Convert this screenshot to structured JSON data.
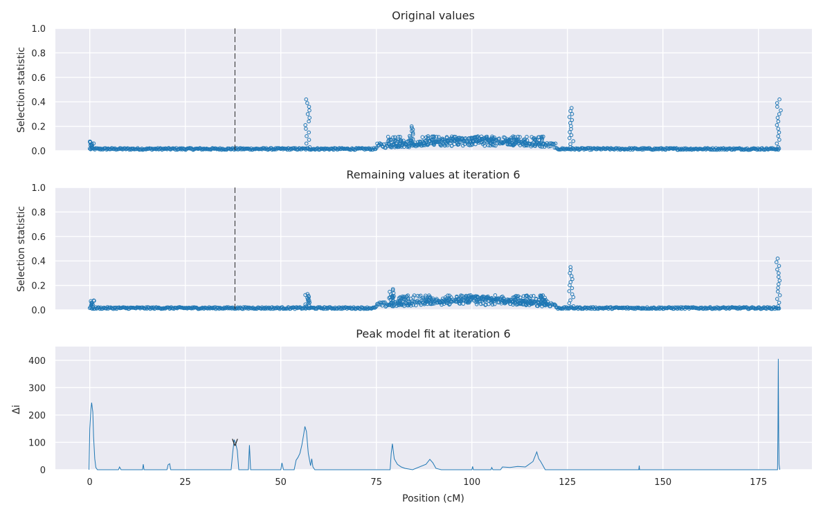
{
  "chart_data": [
    {
      "type": "scatter",
      "title": "Original values",
      "ylabel": "Selection statistic",
      "xlabel": "",
      "xlim": [
        -9,
        189
      ],
      "ylim": [
        0,
        1
      ],
      "yticks": [
        "0.0",
        "0.2",
        "0.4",
        "0.6",
        "0.8",
        "1.0"
      ],
      "xticks": [],
      "grid": true,
      "marker": "open-circle",
      "color": "#1f77b4",
      "vline_x": 38,
      "x_range": [
        0,
        180.5
      ],
      "peaks": [
        {
          "x": 57,
          "y": 0.42
        },
        {
          "x": 84,
          "y": 0.2
        },
        {
          "x": 126,
          "y": 0.35
        },
        {
          "x": 180.3,
          "y": 0.42
        }
      ]
    },
    {
      "type": "scatter",
      "title": "Remaining values at iteration 6",
      "ylabel": "Selection statistic",
      "xlabel": "",
      "xlim": [
        -9,
        189
      ],
      "ylim": [
        0,
        1
      ],
      "yticks": [
        "0.0",
        "0.2",
        "0.4",
        "0.6",
        "0.8",
        "1.0"
      ],
      "xticks": [],
      "grid": true,
      "marker": "open-circle",
      "color": "#1f77b4",
      "vline_x": 38,
      "x_range": [
        0,
        180.5
      ],
      "peaks": [
        {
          "x": 57,
          "y": 0.13
        },
        {
          "x": 79,
          "y": 0.17
        },
        {
          "x": 126,
          "y": 0.35
        },
        {
          "x": 180.3,
          "y": 0.42
        }
      ]
    },
    {
      "type": "line",
      "title": "Peak model fit at iteration 6",
      "ylabel": "Δi",
      "xlabel": "Position (cM)",
      "xlim": [
        -9,
        189
      ],
      "ylim": [
        0,
        450
      ],
      "yticks": [
        "0",
        "100",
        "200",
        "300",
        "400"
      ],
      "xticks": [
        "0",
        "25",
        "50",
        "75",
        "100",
        "125",
        "150",
        "175"
      ],
      "grid": true,
      "color": "#1f77b4",
      "marker_label": {
        "x": 38,
        "y": 100,
        "text": "V"
      },
      "x": [
        -0.2,
        0,
        0.3,
        0.5,
        0.8,
        1.0,
        1.3,
        1.6,
        2.0,
        7.5,
        7.8,
        8.2,
        13.8,
        14.0,
        14.2,
        20.2,
        20.5,
        20.9,
        21.2,
        37.0,
        37.4,
        37.8,
        38.2,
        38.6,
        39.0,
        41.5,
        41.8,
        42.1,
        50.0,
        50.3,
        50.7,
        53.5,
        54.0,
        54.5,
        55.0,
        55.5,
        56.0,
        56.3,
        56.7,
        57.2,
        57.8,
        58.1,
        58.4,
        58.9,
        78.6,
        78.9,
        79.2,
        79.7,
        80.5,
        81.5,
        82.5,
        84.5,
        88.0,
        89.0,
        89.8,
        90.6,
        92.0,
        100.0,
        100.2,
        100.4,
        105.0,
        105.2,
        105.5,
        107.5,
        108.0,
        110.0,
        112.0,
        114.0,
        116.0,
        117.0,
        117.5,
        118.0,
        118.8,
        119.2,
        143.7,
        143.8,
        143.9,
        180.0,
        180.1,
        180.2,
        180.3,
        180.4,
        180.6
      ],
      "y": [
        0,
        150,
        220,
        245,
        210,
        120,
        40,
        8,
        0,
        0,
        10,
        0,
        0,
        20,
        0,
        0,
        18,
        22,
        0,
        0,
        60,
        110,
        95,
        70,
        0,
        0,
        90,
        0,
        0,
        25,
        0,
        0,
        35,
        45,
        60,
        90,
        130,
        158,
        140,
        60,
        15,
        40,
        10,
        0,
        0,
        60,
        95,
        40,
        20,
        10,
        5,
        0,
        20,
        38,
        25,
        5,
        0,
        0,
        12,
        0,
        0,
        8,
        0,
        0,
        10,
        8,
        12,
        10,
        30,
        65,
        40,
        30,
        10,
        0,
        0,
        15,
        0,
        0,
        140,
        405,
        120,
        20,
        0
      ]
    }
  ]
}
